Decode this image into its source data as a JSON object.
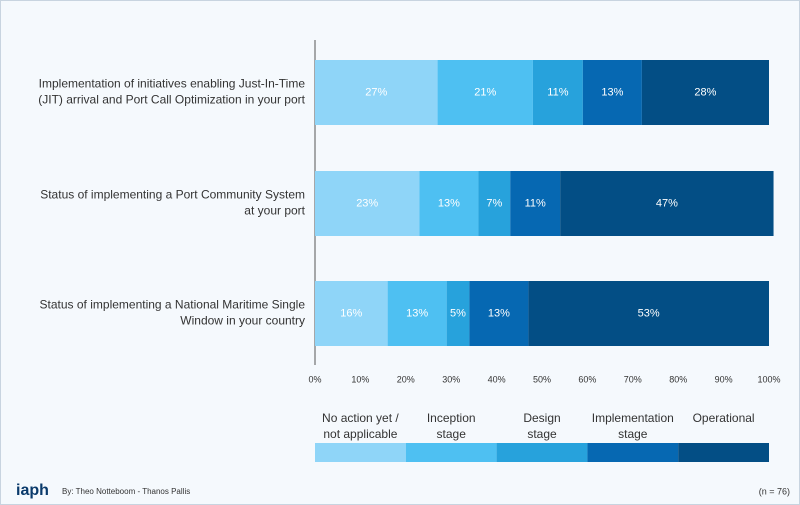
{
  "chart_data": {
    "type": "stacked-bar-horizontal",
    "categories": [
      "Implementation of initiatives enabling Just-In-Time\n(JIT) arrival and Port Call Optimization in your port",
      "Status of implementing a Port Community System\nat your port",
      "Status of implementing a National Maritime Single\nWindow in your country"
    ],
    "series": [
      {
        "name": "No action yet /\nnot applicable",
        "color": "#8fd5f8",
        "values": [
          27,
          23,
          16
        ],
        "value_labels": [
          "27%",
          "23%",
          "16%"
        ]
      },
      {
        "name": "Inception\nstage",
        "color": "#4ec0f2",
        "values": [
          21,
          13,
          13
        ],
        "value_labels": [
          "21%",
          "13%",
          "13%"
        ]
      },
      {
        "name": "Design\nstage",
        "color": "#27a2dc",
        "values": [
          11,
          7,
          5
        ],
        "value_labels": [
          "11%",
          "7%",
          "5%"
        ]
      },
      {
        "name": "Implementation\nstage",
        "color": "#0668b2",
        "values": [
          13,
          11,
          13
        ],
        "value_labels": [
          "13%",
          "11%",
          "13%"
        ]
      },
      {
        "name": "Operational",
        "color": "#034e85",
        "values": [
          28,
          47,
          53
        ],
        "value_labels": [
          "28%",
          "47%",
          "53%"
        ]
      }
    ],
    "xlim": [
      0,
      100
    ],
    "xticks": [
      {
        "value": 0,
        "label": "0%"
      },
      {
        "value": 10,
        "label": "10%"
      },
      {
        "value": 20,
        "label": "20%"
      },
      {
        "value": 30,
        "label": "30%"
      },
      {
        "value": 40,
        "label": "40%"
      },
      {
        "value": 50,
        "label": "50%"
      },
      {
        "value": 60,
        "label": "60%"
      },
      {
        "value": 70,
        "label": "70%"
      },
      {
        "value": 80,
        "label": "80%"
      },
      {
        "value": 90,
        "label": "90%"
      },
      {
        "value": 100,
        "label": "100%"
      }
    ],
    "legend": "bottom"
  },
  "footer": {
    "logo": "iaph",
    "credit": "By: Theo Notteboom - Thanos Pallis",
    "sample": "(n = 76)"
  }
}
